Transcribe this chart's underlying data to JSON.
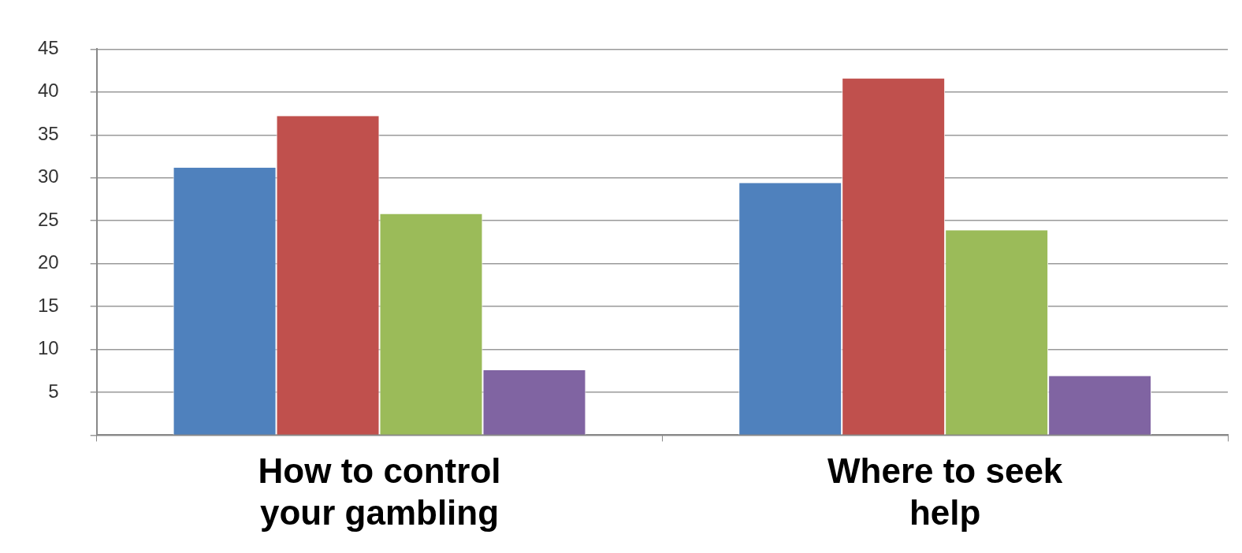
{
  "chart_data": {
    "type": "bar",
    "categories": [
      "How to control your gambling",
      "Where to seek help"
    ],
    "series": [
      {
        "color": "#4f81bd",
        "values": [
          31.2,
          29.4
        ]
      },
      {
        "color": "#c0504d",
        "values": [
          37.2,
          41.6
        ]
      },
      {
        "color": "#9bbb59",
        "values": [
          25.8,
          23.9
        ]
      },
      {
        "color": "#8064a2",
        "values": [
          7.6,
          6.9
        ]
      }
    ],
    "ylim": [
      0,
      45
    ],
    "yticks": [
      {
        "value": 0,
        "label": null
      },
      5,
      10,
      15,
      20,
      25,
      30,
      35,
      40,
      45
    ],
    "grid": "y",
    "legend": false
  }
}
